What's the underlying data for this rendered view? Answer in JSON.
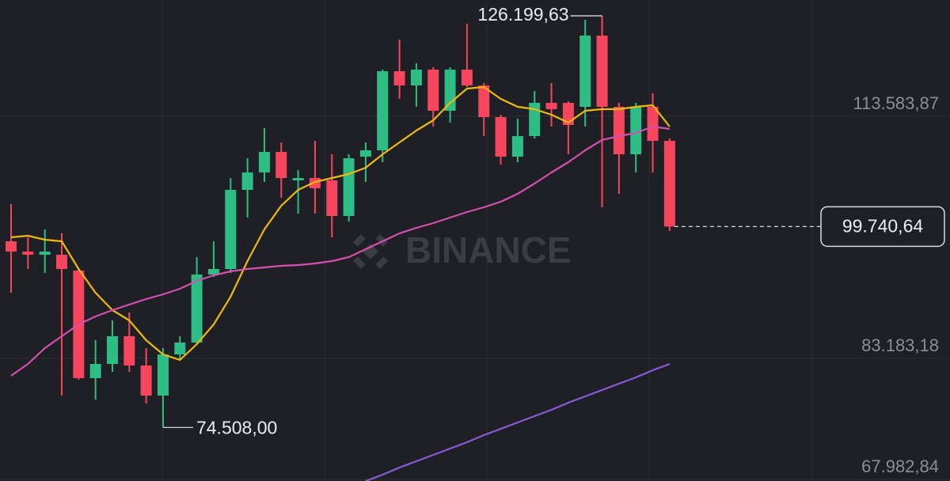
{
  "chart_data": {
    "type": "candlestick",
    "watermark": "BINANCE",
    "ylim": [
      67783,
      128189
    ],
    "yticks": [
      {
        "value": 67982.84,
        "label": "67.982,84"
      },
      {
        "value": 83183.18,
        "label": "83.183,18"
      },
      {
        "value": 113583.87,
        "label": "113.583,87"
      }
    ],
    "grid": true,
    "up_color": "#2ebd85",
    "down_color": "#f6465d",
    "open": [
      97887,
      96595,
      96198,
      96198,
      94211,
      80699,
      82488,
      85965,
      82289,
      78514,
      83680,
      85170,
      93714,
      94410,
      104345,
      106530,
      109113,
      105537,
      105835,
      105537,
      101066,
      108517,
      109312,
      119247,
      117459,
      119446,
      114280,
      119446,
      117459,
      113485,
      108517,
      111100,
      115273,
      115273,
      114776,
      123718,
      114776,
      108815,
      114776,
      110504
    ],
    "high": [
      102556,
      98384,
      99377,
      98880,
      94410,
      85468,
      87952,
      88945,
      84475,
      84475,
      85965,
      95900,
      97887,
      105835,
      108319,
      112094,
      110306,
      106828,
      110504,
      108815,
      108815,
      110306,
      119446,
      123221,
      120241,
      119744,
      119744,
      125200,
      117757,
      113783,
      113286,
      116763,
      117757,
      115472,
      125705,
      126199.63,
      115273,
      115273,
      116465,
      110802
    ],
    "low": [
      91429,
      94410,
      93913,
      78514,
      80501,
      78017,
      81494,
      81494,
      77520,
      74508,
      82984,
      84971,
      93416,
      93913,
      100867,
      105338,
      103351,
      101364,
      101364,
      98384,
      100371,
      105338,
      107822,
      115770,
      114776,
      112293,
      112789,
      117260,
      111100,
      107524,
      107822,
      110802,
      112293,
      108815,
      112293,
      102159,
      103848,
      106530,
      106530,
      99178
    ],
    "close": [
      96595,
      96198,
      96595,
      94410,
      80699,
      82488,
      85965,
      82289,
      78514,
      83680,
      85170,
      93714,
      94410,
      104345,
      106530,
      109113,
      105835,
      105835,
      104543,
      101066,
      108319,
      109312,
      119247,
      117459,
      119446,
      114280,
      119446,
      117459,
      113485,
      108517,
      111100,
      115273,
      114478,
      112491,
      123718,
      114776,
      108815,
      114776,
      110504,
      99740.64
    ],
    "lines": [
      {
        "color": "#f0b90b",
        "values": [
          98384,
          98583,
          98086,
          97887,
          94410,
          91429,
          89244,
          87952,
          85468,
          83680,
          82984,
          84971,
          87455,
          90932,
          95403,
          99377,
          102358,
          104345,
          105338,
          105835,
          106332,
          107127,
          108815,
          110306,
          111796,
          113088,
          115273,
          117061,
          117260,
          115770,
          114776,
          114478,
          113783,
          112789,
          114280,
          114478,
          114478,
          114776,
          114975,
          112293
        ]
      },
      {
        "color": "#d64fb0",
        "values": [
          80997,
          82488,
          84475,
          85965,
          87455,
          88449,
          89244,
          89939,
          90634,
          91230,
          91926,
          92919,
          93615,
          94112,
          94410,
          94608,
          94807,
          94906,
          95105,
          95403,
          95900,
          96893,
          97887,
          98880,
          99576,
          100172,
          100867,
          101563,
          102159,
          102854,
          103848,
          105140,
          106530,
          107822,
          109312,
          110604,
          111100,
          111497,
          112293,
          111995
        ]
      },
      {
        "color": "#8c5ad8",
        "values": [
          null,
          null,
          null,
          null,
          null,
          null,
          null,
          null,
          null,
          null,
          null,
          null,
          null,
          null,
          null,
          null,
          null,
          null,
          null,
          null,
          null,
          67784,
          68579,
          69473,
          70267,
          71062,
          71857,
          72652,
          73546,
          74341,
          75136,
          75930,
          76725,
          77619,
          78414,
          79209,
          80004,
          80799,
          81693,
          82488
        ]
      }
    ],
    "high_label": {
      "value": 126199.63,
      "label": "126.199,63"
    },
    "low_label": {
      "value": 74508,
      "label": "74.508,00"
    },
    "last_price": {
      "value": 99740.64,
      "label": "99.740,64"
    }
  }
}
